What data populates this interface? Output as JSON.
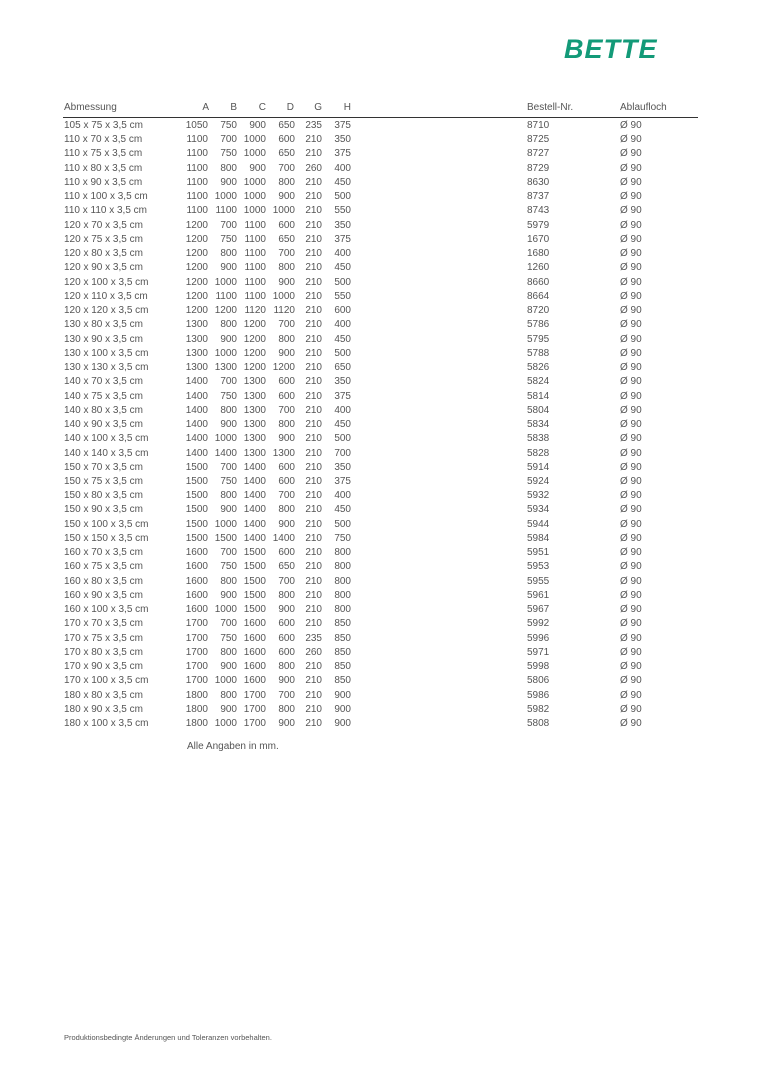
{
  "logo": "BETTE",
  "table": {
    "header": [
      "Abmessung",
      "A",
      "B",
      "C",
      "D",
      "G",
      "H",
      "Bestell-Nr.",
      "Ablaufloch"
    ],
    "rows": [
      [
        "105 x 75 x 3,5 cm",
        "1050",
        "750",
        "900",
        "650",
        "235",
        "375",
        "8710",
        "Ø 90"
      ],
      [
        "110 x 70 x 3,5 cm",
        "1100",
        "700",
        "1000",
        "600",
        "210",
        "350",
        "8725",
        "Ø 90"
      ],
      [
        "110 x 75 x 3,5 cm",
        "1100",
        "750",
        "1000",
        "650",
        "210",
        "375",
        "8727",
        "Ø 90"
      ],
      [
        "110 x 80 x 3,5 cm",
        "1100",
        "800",
        "900",
        "700",
        "260",
        "400",
        "8729",
        "Ø 90"
      ],
      [
        "110 x 90 x 3,5 cm",
        "1100",
        "900",
        "1000",
        "800",
        "210",
        "450",
        "8630",
        "Ø 90"
      ],
      [
        "110 x 100 x 3,5 cm",
        "1100",
        "1000",
        "1000",
        "900",
        "210",
        "500",
        "8737",
        "Ø 90"
      ],
      [
        "110 x 110 x 3,5 cm",
        "1100",
        "1100",
        "1000",
        "1000",
        "210",
        "550",
        "8743",
        "Ø 90"
      ],
      [
        "120 x 70 x 3,5 cm",
        "1200",
        "700",
        "1100",
        "600",
        "210",
        "350",
        "5979",
        "Ø 90"
      ],
      [
        "120 x 75 x 3,5 cm",
        "1200",
        "750",
        "1100",
        "650",
        "210",
        "375",
        "1670",
        "Ø 90"
      ],
      [
        "120 x 80 x 3,5 cm",
        "1200",
        "800",
        "1100",
        "700",
        "210",
        "400",
        "1680",
        "Ø 90"
      ],
      [
        "120 x 90 x 3,5 cm",
        "1200",
        "900",
        "1100",
        "800",
        "210",
        "450",
        "1260",
        "Ø 90"
      ],
      [
        "120 x 100 x 3,5 cm",
        "1200",
        "1000",
        "1100",
        "900",
        "210",
        "500",
        "8660",
        "Ø 90"
      ],
      [
        "120 x 110 x 3,5 cm",
        "1200",
        "1100",
        "1100",
        "1000",
        "210",
        "550",
        "8664",
        "Ø 90"
      ],
      [
        "120 x 120 x 3,5 cm",
        "1200",
        "1200",
        "1120",
        "1120",
        "210",
        "600",
        "8720",
        "Ø 90"
      ],
      [
        "130 x 80 x 3,5 cm",
        "1300",
        "800",
        "1200",
        "700",
        "210",
        "400",
        "5786",
        "Ø 90"
      ],
      [
        "130 x 90 x 3,5 cm",
        "1300",
        "900",
        "1200",
        "800",
        "210",
        "450",
        "5795",
        "Ø 90"
      ],
      [
        "130 x 100 x 3,5 cm",
        "1300",
        "1000",
        "1200",
        "900",
        "210",
        "500",
        "5788",
        "Ø 90"
      ],
      [
        "130 x 130 x 3,5 cm",
        "1300",
        "1300",
        "1200",
        "1200",
        "210",
        "650",
        "5826",
        "Ø 90"
      ],
      [
        "140 x 70 x 3,5 cm",
        "1400",
        "700",
        "1300",
        "600",
        "210",
        "350",
        "5824",
        "Ø 90"
      ],
      [
        "140 x 75 x 3,5 cm",
        "1400",
        "750",
        "1300",
        "600",
        "210",
        "375",
        "5814",
        "Ø 90"
      ],
      [
        "140 x 80 x 3,5 cm",
        "1400",
        "800",
        "1300",
        "700",
        "210",
        "400",
        "5804",
        "Ø 90"
      ],
      [
        "140 x 90 x 3,5 cm",
        "1400",
        "900",
        "1300",
        "800",
        "210",
        "450",
        "5834",
        "Ø 90"
      ],
      [
        "140 x 100 x 3,5 cm",
        "1400",
        "1000",
        "1300",
        "900",
        "210",
        "500",
        "5838",
        "Ø 90"
      ],
      [
        "140 x 140 x 3,5 cm",
        "1400",
        "1400",
        "1300",
        "1300",
        "210",
        "700",
        "5828",
        "Ø 90"
      ],
      [
        "150 x 70 x 3,5 cm",
        "1500",
        "700",
        "1400",
        "600",
        "210",
        "350",
        "5914",
        "Ø 90"
      ],
      [
        "150 x 75 x 3,5 cm",
        "1500",
        "750",
        "1400",
        "600",
        "210",
        "375",
        "5924",
        "Ø 90"
      ],
      [
        "150 x 80 x 3,5 cm",
        "1500",
        "800",
        "1400",
        "700",
        "210",
        "400",
        "5932",
        "Ø 90"
      ],
      [
        "150 x 90 x 3,5 cm",
        "1500",
        "900",
        "1400",
        "800",
        "210",
        "450",
        "5934",
        "Ø 90"
      ],
      [
        "150 x 100 x 3,5 cm",
        "1500",
        "1000",
        "1400",
        "900",
        "210",
        "500",
        "5944",
        "Ø 90"
      ],
      [
        "150 x 150 x 3,5 cm",
        "1500",
        "1500",
        "1400",
        "1400",
        "210",
        "750",
        "5984",
        "Ø 90"
      ],
      [
        "160 x 70 x 3,5 cm",
        "1600",
        "700",
        "1500",
        "600",
        "210",
        "800",
        "5951",
        "Ø 90"
      ],
      [
        "160 x 75 x 3,5 cm",
        "1600",
        "750",
        "1500",
        "650",
        "210",
        "800",
        "5953",
        "Ø 90"
      ],
      [
        "160 x 80 x 3,5 cm",
        "1600",
        "800",
        "1500",
        "700",
        "210",
        "800",
        "5955",
        "Ø 90"
      ],
      [
        "160 x 90 x 3,5 cm",
        "1600",
        "900",
        "1500",
        "800",
        "210",
        "800",
        "5961",
        "Ø 90"
      ],
      [
        "160 x 100 x 3,5 cm",
        "1600",
        "1000",
        "1500",
        "900",
        "210",
        "800",
        "5967",
        "Ø 90"
      ],
      [
        "170 x 70 x 3,5 cm",
        "1700",
        "700",
        "1600",
        "600",
        "210",
        "850",
        "5992",
        "Ø 90"
      ],
      [
        "170 x 75 x 3,5 cm",
        "1700",
        "750",
        "1600",
        "600",
        "235",
        "850",
        "5996",
        "Ø 90"
      ],
      [
        "170 x 80 x 3,5 cm",
        "1700",
        "800",
        "1600",
        "600",
        "260",
        "850",
        "5971",
        "Ø 90"
      ],
      [
        "170 x 90 x 3,5 cm",
        "1700",
        "900",
        "1600",
        "800",
        "210",
        "850",
        "5998",
        "Ø 90"
      ],
      [
        "170 x 100 x 3,5 cm",
        "1700",
        "1000",
        "1600",
        "900",
        "210",
        "850",
        "5806",
        "Ø 90"
      ],
      [
        "180 x 80 x 3,5 cm",
        "1800",
        "800",
        "1700",
        "700",
        "210",
        "900",
        "5986",
        "Ø 90"
      ],
      [
        "180 x 90 x 3,5 cm",
        "1800",
        "900",
        "1700",
        "800",
        "210",
        "900",
        "5982",
        "Ø 90"
      ],
      [
        "180 x 100 x 3,5 cm",
        "1800",
        "1000",
        "1700",
        "900",
        "210",
        "900",
        "5808",
        "Ø 90"
      ]
    ]
  },
  "note": "Alle Angaben in mm.",
  "footer": "Produktionsbedingte Änderungen und Toleranzen vorbehalten."
}
